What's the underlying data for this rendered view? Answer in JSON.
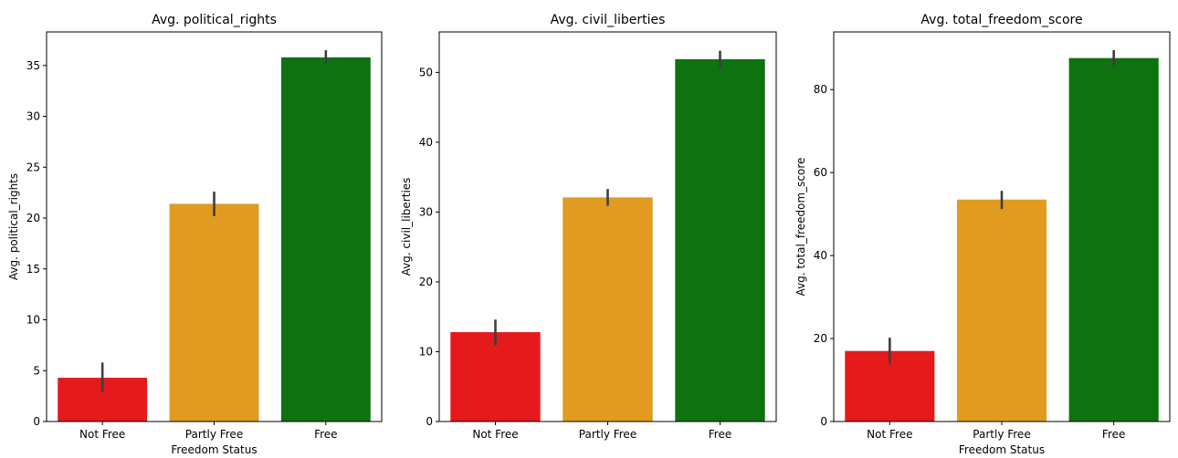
{
  "chart_data": [
    {
      "type": "bar",
      "title": "Avg. political_rights",
      "xlabel": "Freedom Status",
      "ylabel": "Avg. political_rights",
      "categories": [
        "Not Free",
        "Partly Free",
        "Free"
      ],
      "values": [
        4.3,
        21.4,
        35.8
      ],
      "error_low": [
        2.9,
        20.2,
        35.1
      ],
      "error_high": [
        5.8,
        22.6,
        36.5
      ],
      "ylim": [
        0,
        38.3
      ],
      "yticks": [
        0,
        5,
        10,
        15,
        20,
        25,
        30,
        35
      ],
      "colors": [
        "#e41a1c",
        "#e09b20",
        "#0e7210"
      ],
      "grid": false
    },
    {
      "type": "bar",
      "title": "Avg. civil_liberties",
      "xlabel": "",
      "ylabel": "Avg. civil_liberties",
      "categories": [
        "Not Free",
        "Partly Free",
        "Free"
      ],
      "values": [
        12.8,
        32.1,
        51.9
      ],
      "error_low": [
        10.9,
        30.9,
        50.6
      ],
      "error_high": [
        14.6,
        33.3,
        53.1
      ],
      "ylim": [
        0,
        55.8
      ],
      "yticks": [
        0,
        10,
        20,
        30,
        40,
        50
      ],
      "colors": [
        "#e41a1c",
        "#e09b20",
        "#0e7210"
      ],
      "grid": false
    },
    {
      "type": "bar",
      "title": "Avg. total_freedom_score",
      "xlabel": "Freedom Status",
      "ylabel": "Avg. total_freedom_score",
      "categories": [
        "Not Free",
        "Partly Free",
        "Free"
      ],
      "values": [
        17.0,
        53.5,
        87.6
      ],
      "error_low": [
        14.0,
        51.2,
        85.7
      ],
      "error_high": [
        20.2,
        55.6,
        89.5
      ],
      "ylim": [
        0,
        93.9
      ],
      "yticks": [
        0,
        20,
        40,
        60,
        80
      ],
      "colors": [
        "#e41a1c",
        "#e09b20",
        "#0e7210"
      ],
      "grid": false
    }
  ]
}
